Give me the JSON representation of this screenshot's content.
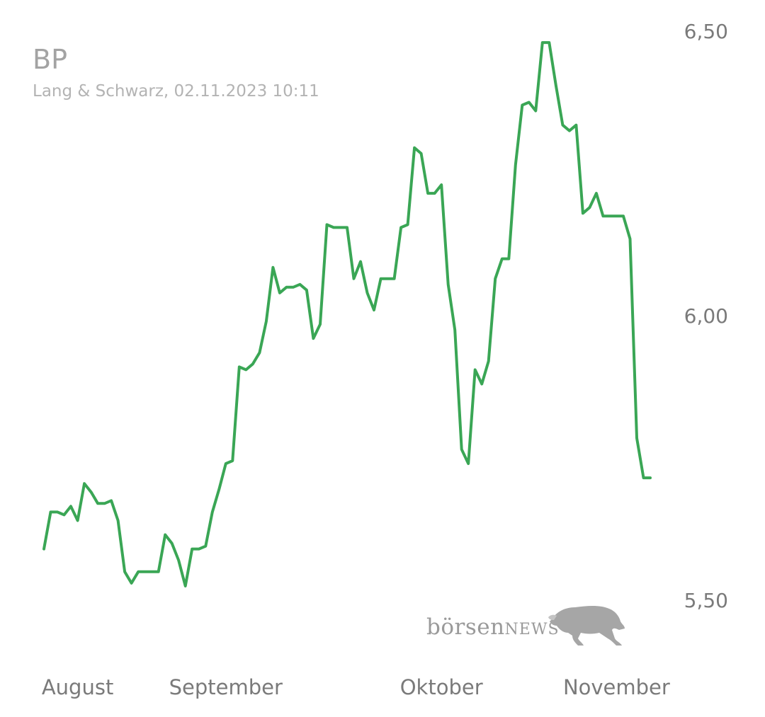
{
  "header": {
    "title": "BP",
    "subtitle": "Lang & Schwarz, 02.11.2023 10:11"
  },
  "watermark": {
    "brand_lower": "börsen",
    "brand_upper": "NEWS",
    "icon": "bull-icon"
  },
  "colors": {
    "line": "#3aa655",
    "axis_text": "#7a7a7a",
    "title": "#a3a3a3"
  },
  "chart_data": {
    "type": "line",
    "title": "",
    "xlabel": "",
    "ylabel": "",
    "ylim": [
      5.38,
      6.55
    ],
    "y_ticks": [
      "6,50",
      "6,00",
      "5,50"
    ],
    "y_tick_values": [
      6.5,
      6.0,
      5.5
    ],
    "x_tick_labels": [
      "August",
      "September",
      "Oktober",
      "November"
    ],
    "x_tick_indices": [
      5,
      27,
      59,
      85
    ],
    "grid": false,
    "legend": "none",
    "series": [
      {
        "values": [
          5.59,
          5.655,
          5.655,
          5.65,
          5.665,
          5.64,
          5.705,
          5.69,
          5.67,
          5.67,
          5.675,
          5.64,
          5.55,
          5.53,
          5.55,
          5.55,
          5.55,
          5.55,
          5.615,
          5.6,
          5.57,
          5.525,
          5.59,
          5.59,
          5.595,
          5.655,
          5.695,
          5.74,
          5.745,
          5.91,
          5.905,
          5.915,
          5.935,
          5.99,
          6.085,
          6.04,
          6.05,
          6.05,
          6.055,
          6.045,
          5.96,
          5.985,
          6.16,
          6.155,
          6.155,
          6.155,
          6.065,
          6.095,
          6.04,
          6.01,
          6.065,
          6.065,
          6.065,
          6.155,
          6.16,
          6.295,
          6.285,
          6.215,
          6.215,
          6.23,
          6.055,
          5.975,
          5.765,
          5.74,
          5.905,
          5.88,
          5.92,
          6.065,
          6.1,
          6.1,
          6.265,
          6.37,
          6.375,
          6.36,
          6.48,
          6.48,
          6.405,
          6.335,
          6.325,
          6.335,
          6.18,
          6.19,
          6.215,
          6.175,
          6.175,
          6.175,
          6.175,
          6.135,
          5.785,
          5.715,
          5.715
        ]
      }
    ]
  }
}
